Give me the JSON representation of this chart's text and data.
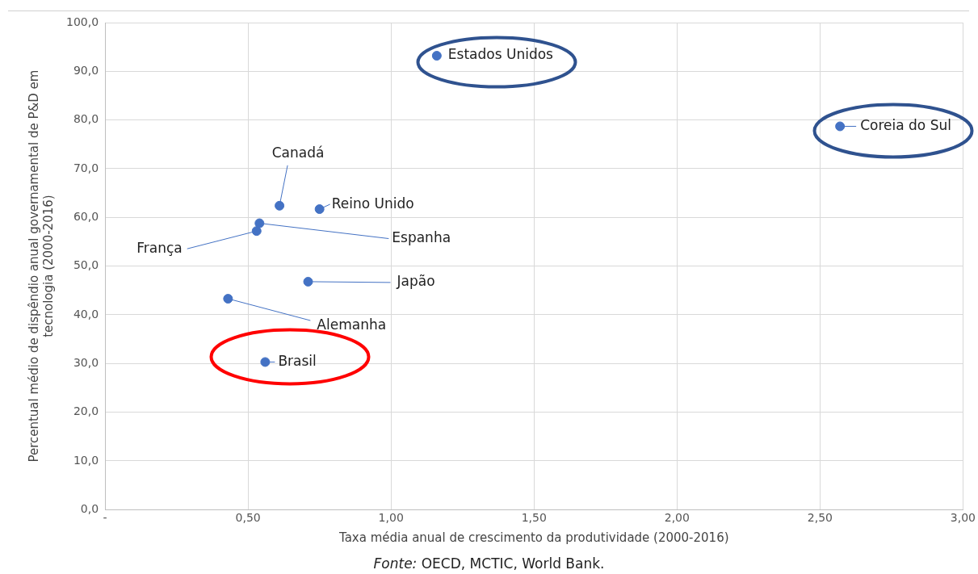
{
  "chart_data": {
    "type": "scatter",
    "xlabel": "Taxa média anual de crescimento da produtividade (2000-2016)",
    "ylabel": "Percentual médio de dispêndio anual governamental de P&D em tecnologia (2000-2016)",
    "x": [
      1.16,
      2.57,
      0.61,
      0.75,
      0.54,
      0.53,
      0.71,
      0.43,
      0.56
    ],
    "values": [
      93.2,
      78.7,
      62.4,
      61.7,
      58.8,
      57.2,
      46.8,
      43.3,
      30.3
    ],
    "color": "#4472c4",
    "marker": "circle",
    "grid": true,
    "xlim": [
      0,
      3
    ],
    "xticks": [
      {
        "value": 0,
        "label": "-"
      },
      {
        "value": 0.5,
        "label": "0,50"
      },
      {
        "value": 1,
        "label": "1,00"
      },
      {
        "value": 1.5,
        "label": "1,50"
      },
      {
        "value": 2,
        "label": "2,00"
      },
      {
        "value": 2.5,
        "label": "2,50"
      },
      {
        "value": 3,
        "label": "3,00"
      }
    ],
    "ylim": [
      0,
      100
    ],
    "yticks": [
      {
        "value": 0,
        "label": "0,0"
      },
      {
        "value": 10,
        "label": "10,0"
      },
      {
        "value": 20,
        "label": "20,0"
      },
      {
        "value": 30,
        "label": "30,0"
      },
      {
        "value": 40,
        "label": "40,0"
      },
      {
        "value": 50,
        "label": "50,0"
      },
      {
        "value": 60,
        "label": "60,0"
      },
      {
        "value": 70,
        "label": "70,0"
      },
      {
        "value": 80,
        "label": "80,0"
      },
      {
        "value": 90,
        "label": "90,0"
      },
      {
        "value": 100,
        "label": "100,0"
      }
    ],
    "annotations": [
      {
        "text": "Estados Unidos",
        "x": 1.16,
        "y": 93.2
      },
      {
        "text": "Coreia do Sul",
        "x": 2.57,
        "y": 78.7
      },
      {
        "text": "Canadá",
        "x": 0.61,
        "y": 62.4
      },
      {
        "text": "Reino Unido",
        "x": 0.75,
        "y": 61.7
      },
      {
        "text": "Espanha",
        "x": 0.54,
        "y": 58.8
      },
      {
        "text": "França",
        "x": 0.53,
        "y": 57.2
      },
      {
        "text": "Japão",
        "x": 0.71,
        "y": 46.8
      },
      {
        "text": "Alemanha",
        "x": 0.43,
        "y": 43.3
      },
      {
        "text": "Brasil",
        "x": 0.56,
        "y": 30.3
      },
      "Fonte: OECD, MCTIC, World Bank."
    ]
  }
}
